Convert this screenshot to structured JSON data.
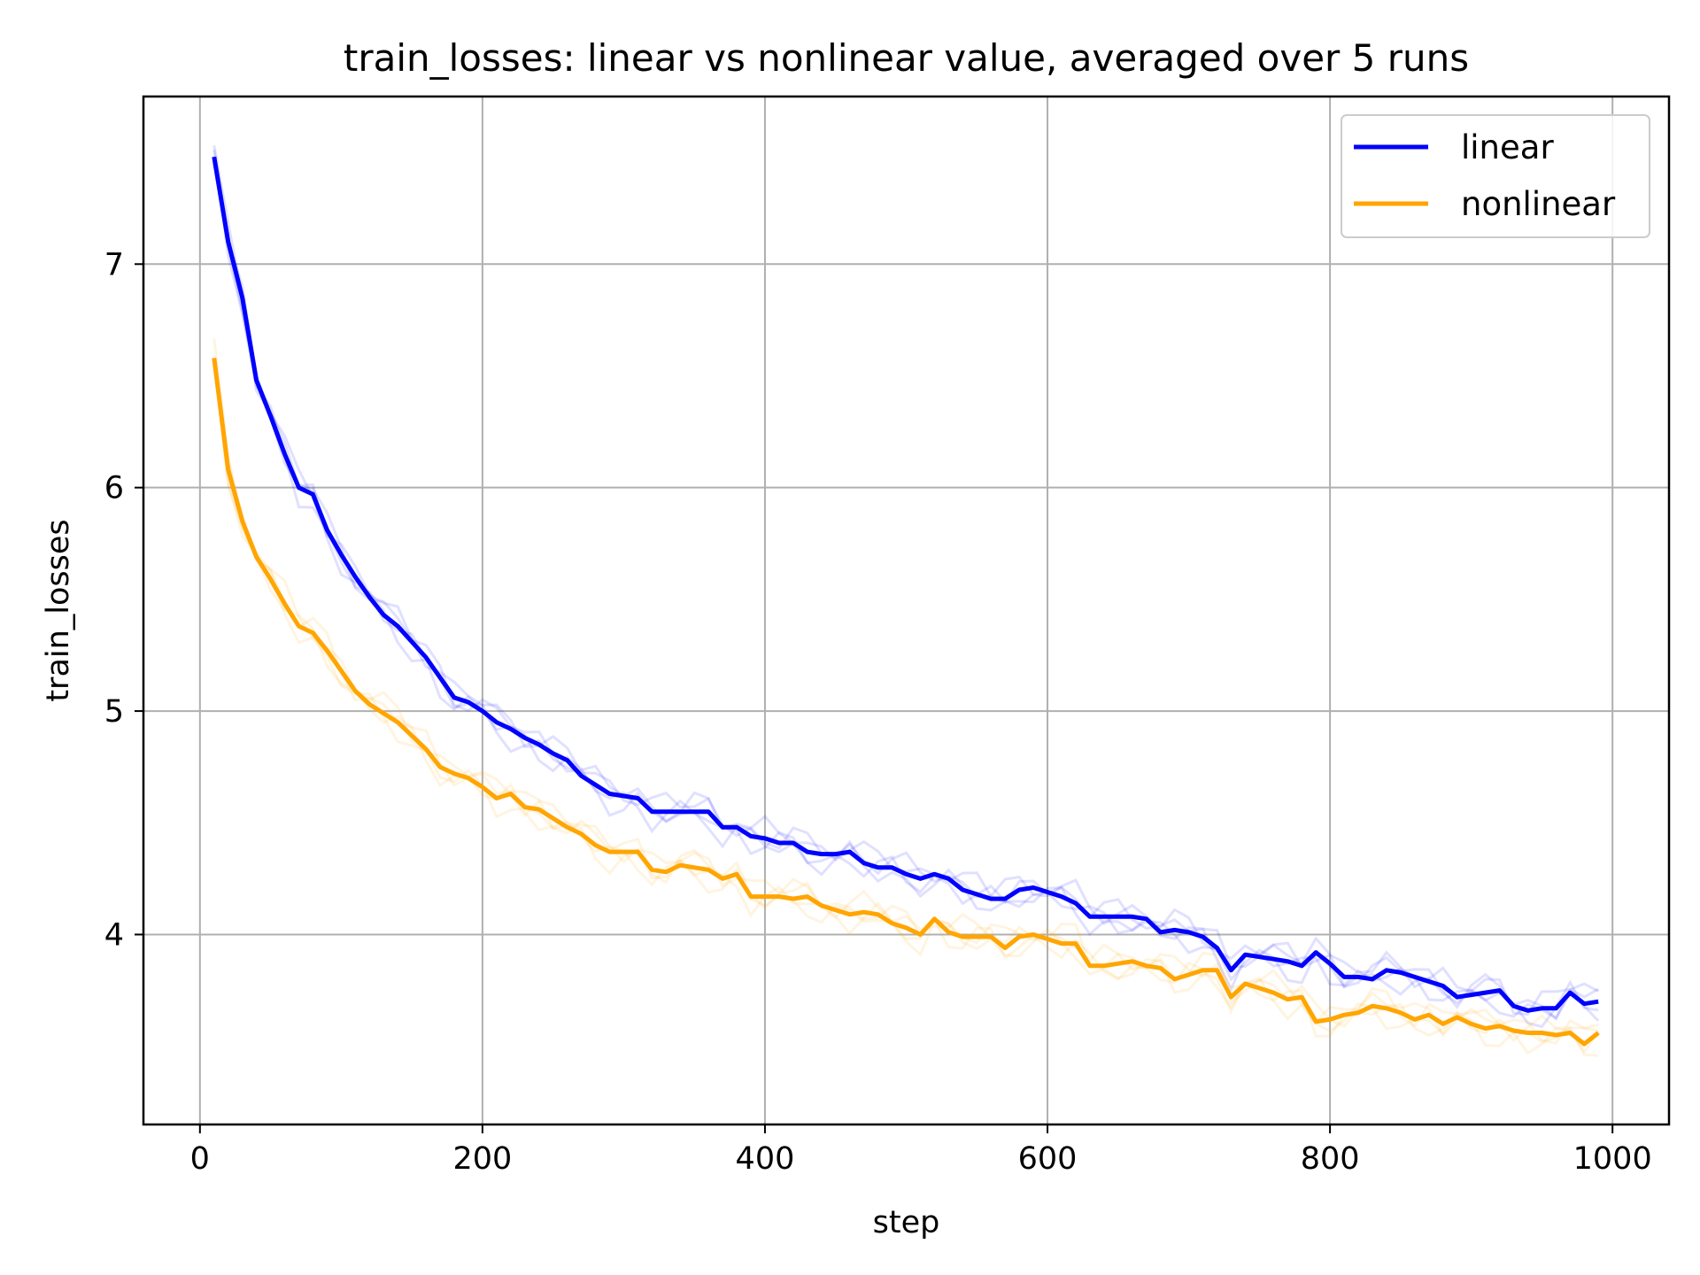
{
  "chart_data": {
    "type": "line",
    "title": "train_losses: linear vs nonlinear value, averaged over 5 runs",
    "xlabel": "step",
    "ylabel": "train_losses",
    "xlim": [
      -40,
      1040
    ],
    "ylim": [
      3.15,
      7.75
    ],
    "xticks": [
      0,
      200,
      400,
      600,
      800,
      1000
    ],
    "yticks": [
      4,
      5,
      6,
      7
    ],
    "grid": true,
    "legend_position": "top-right",
    "x": [
      10,
      20,
      30,
      40,
      50,
      60,
      70,
      80,
      90,
      100,
      110,
      120,
      130,
      140,
      150,
      160,
      170,
      180,
      190,
      200,
      210,
      220,
      230,
      240,
      250,
      260,
      270,
      280,
      290,
      300,
      310,
      320,
      330,
      340,
      350,
      360,
      370,
      380,
      390,
      400,
      410,
      420,
      430,
      440,
      450,
      460,
      470,
      480,
      490,
      500,
      510,
      520,
      530,
      540,
      550,
      560,
      570,
      580,
      590,
      600,
      610,
      620,
      630,
      640,
      650,
      660,
      670,
      680,
      690,
      700,
      710,
      720,
      730,
      740,
      750,
      760,
      770,
      780,
      790,
      800,
      810,
      820,
      830,
      840,
      850,
      860,
      870,
      880,
      890,
      900,
      910,
      920,
      930,
      940,
      950,
      960,
      970,
      980,
      990
    ],
    "series": [
      {
        "name": "linear",
        "color": "#0000ff",
        "values": [
          7.48,
          7.1,
          6.85,
          6.48,
          6.32,
          6.15,
          6.0,
          5.97,
          5.81,
          5.7,
          5.6,
          5.51,
          5.43,
          5.38,
          5.31,
          5.24,
          5.15,
          5.06,
          5.04,
          5.0,
          4.95,
          4.92,
          4.88,
          4.85,
          4.81,
          4.78,
          4.71,
          4.67,
          4.63,
          4.62,
          4.61,
          4.55,
          4.55,
          4.55,
          4.55,
          4.55,
          4.48,
          4.48,
          4.44,
          4.43,
          4.41,
          4.41,
          4.37,
          4.36,
          4.36,
          4.37,
          4.32,
          4.3,
          4.3,
          4.27,
          4.25,
          4.27,
          4.25,
          4.2,
          4.18,
          4.16,
          4.16,
          4.2,
          4.21,
          4.19,
          4.17,
          4.14,
          4.08,
          4.08,
          4.08,
          4.08,
          4.07,
          4.01,
          4.02,
          4.01,
          3.99,
          3.94,
          3.84,
          3.91,
          3.9,
          3.89,
          3.88,
          3.86,
          3.92,
          3.87,
          3.81,
          3.81,
          3.8,
          3.84,
          3.83,
          3.81,
          3.79,
          3.77,
          3.72,
          3.73,
          3.74,
          3.75,
          3.68,
          3.66,
          3.67,
          3.67,
          3.74,
          3.69,
          3.7
        ]
      },
      {
        "name": "nonlinear",
        "color": "#ffa500",
        "values": [
          6.58,
          6.08,
          5.85,
          5.69,
          5.59,
          5.48,
          5.38,
          5.35,
          5.27,
          5.18,
          5.09,
          5.03,
          4.99,
          4.95,
          4.89,
          4.83,
          4.75,
          4.72,
          4.7,
          4.66,
          4.61,
          4.63,
          4.57,
          4.56,
          4.52,
          4.48,
          4.45,
          4.4,
          4.37,
          4.37,
          4.37,
          4.29,
          4.28,
          4.31,
          4.3,
          4.29,
          4.25,
          4.27,
          4.17,
          4.17,
          4.17,
          4.16,
          4.17,
          4.13,
          4.11,
          4.09,
          4.1,
          4.09,
          4.05,
          4.03,
          4.0,
          4.07,
          4.01,
          3.99,
          3.99,
          3.99,
          3.94,
          3.99,
          4.0,
          3.98,
          3.96,
          3.96,
          3.86,
          3.86,
          3.87,
          3.88,
          3.86,
          3.85,
          3.8,
          3.82,
          3.84,
          3.84,
          3.72,
          3.78,
          3.76,
          3.74,
          3.71,
          3.72,
          3.61,
          3.62,
          3.64,
          3.65,
          3.68,
          3.67,
          3.65,
          3.62,
          3.64,
          3.6,
          3.63,
          3.6,
          3.58,
          3.59,
          3.57,
          3.56,
          3.56,
          3.55,
          3.56,
          3.51,
          3.56
        ]
      }
    ]
  }
}
